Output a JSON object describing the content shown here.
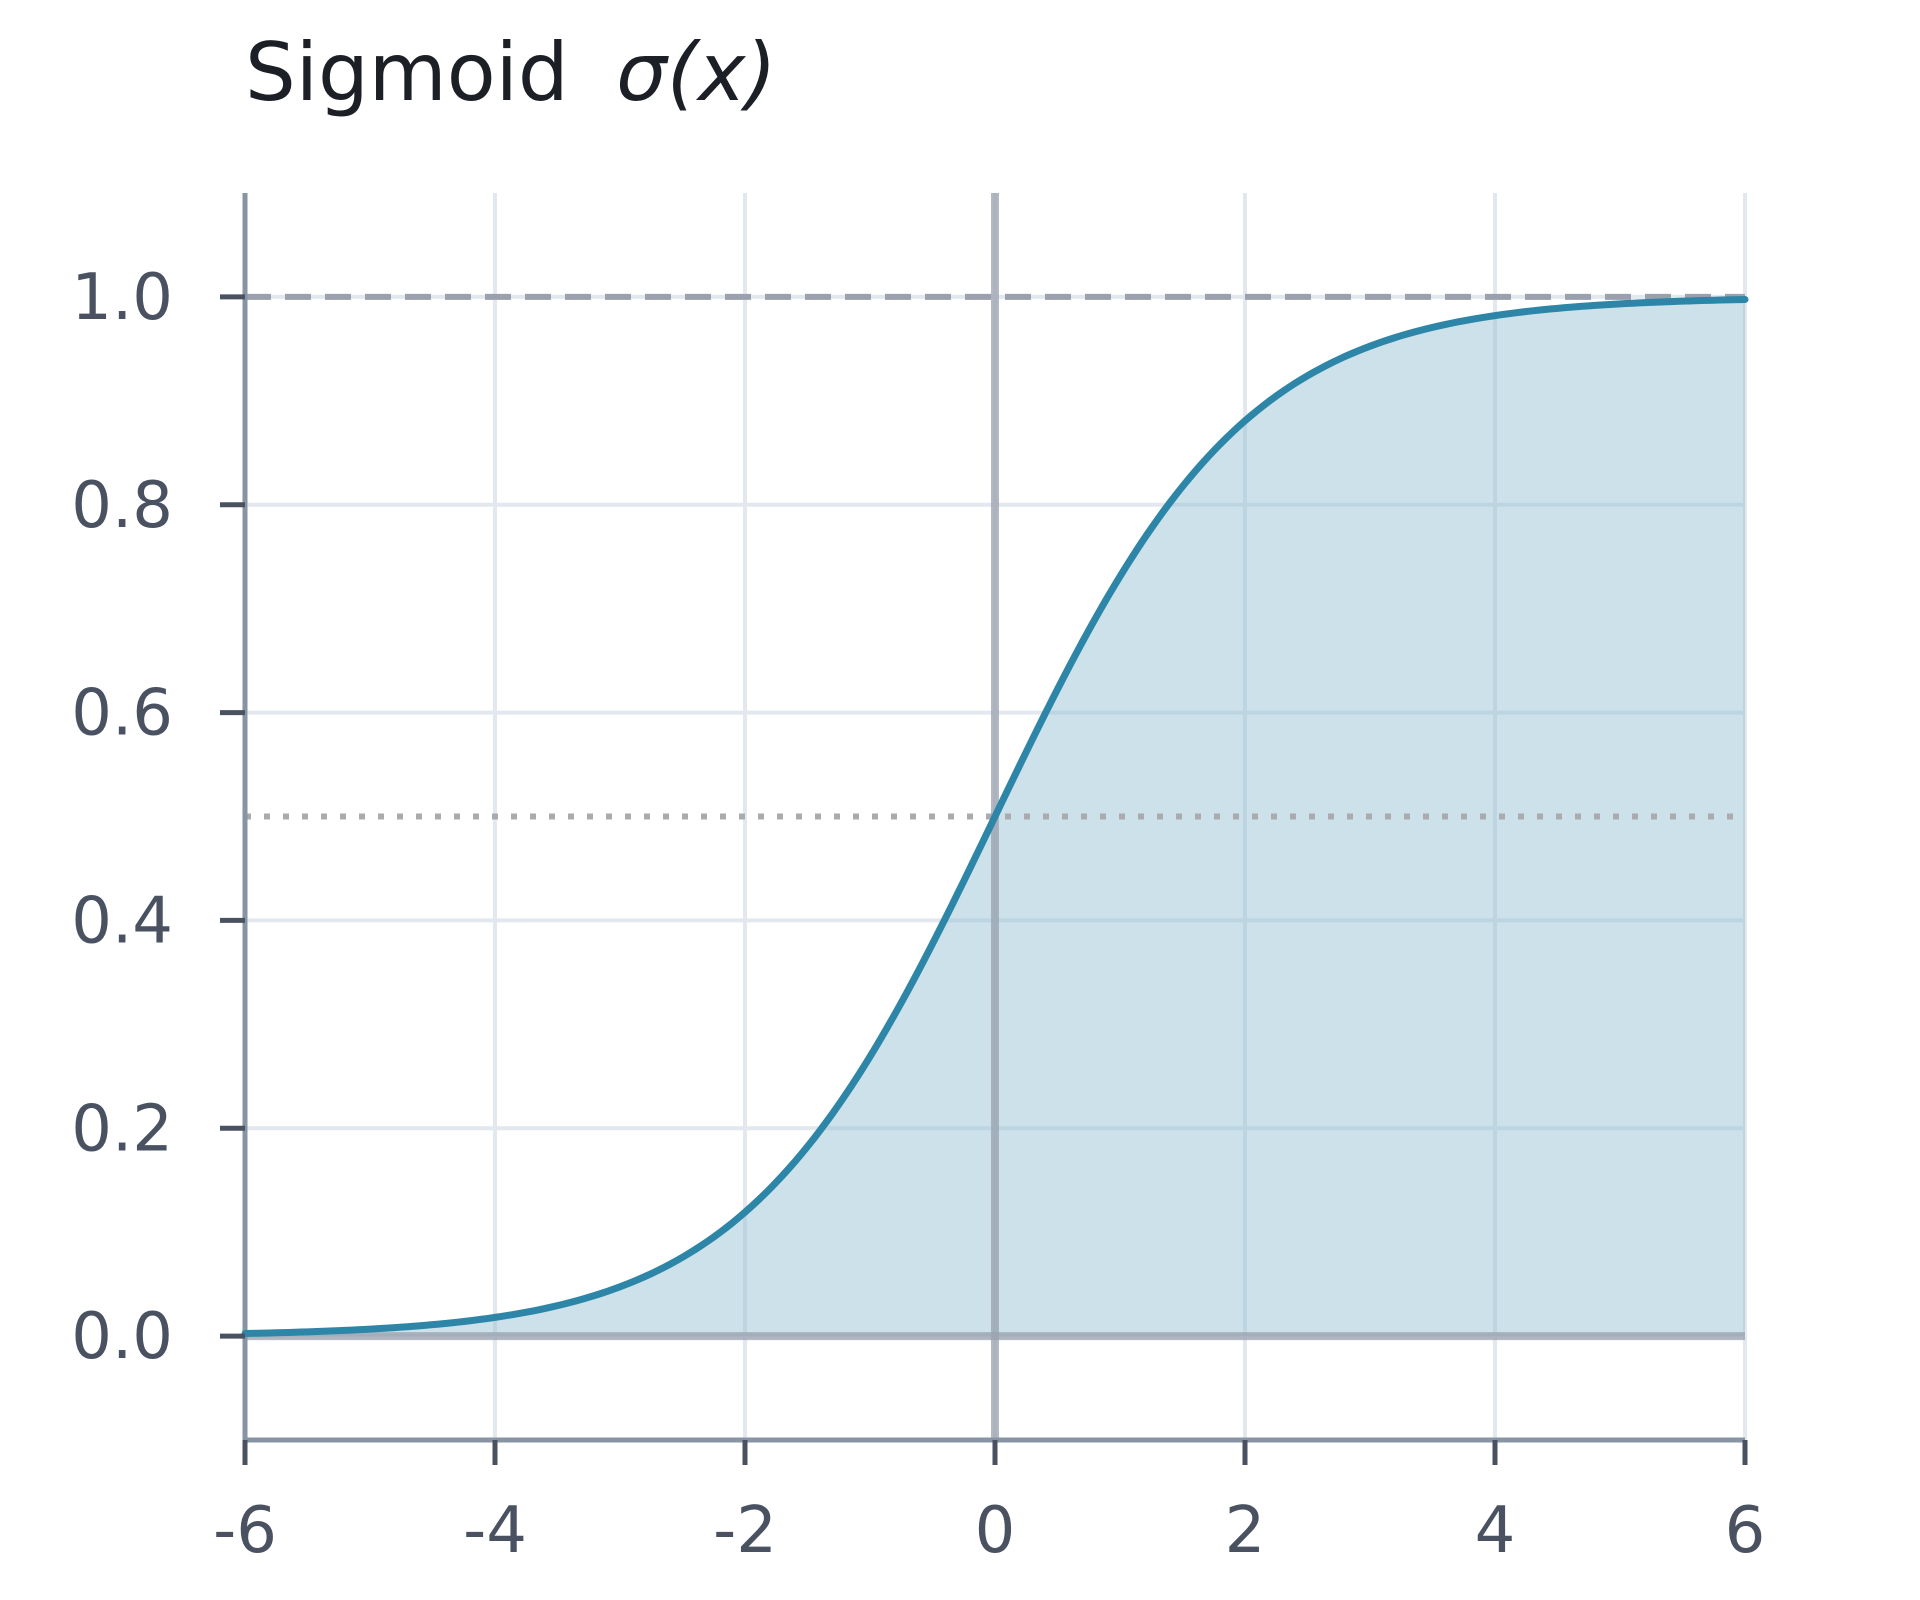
{
  "chart_data": {
    "type": "area",
    "title": "Sigmoid",
    "title_symbol": "σ(x)",
    "function": "sigmoid",
    "xlabel": "",
    "ylabel": "",
    "xlim": [
      -6,
      6
    ],
    "ylim": [
      -0.1,
      1.1
    ],
    "x_ticks": [
      -6,
      -4,
      -2,
      0,
      2,
      4,
      6
    ],
    "x_tick_labels": [
      "-6",
      "-4",
      "-2",
      "0",
      "2",
      "4",
      "6"
    ],
    "y_ticks": [
      0.0,
      0.2,
      0.4,
      0.6,
      0.8,
      1.0
    ],
    "y_tick_labels": [
      "0.0",
      "0.2",
      "0.4",
      "0.6",
      "0.8",
      "1.0"
    ],
    "grid": true,
    "reference_lines": [
      {
        "axis": "y",
        "value": 1.0,
        "style": "dashed"
      },
      {
        "axis": "y",
        "value": 0.5,
        "style": "dotted"
      },
      {
        "axis": "y",
        "value": 0.0,
        "style": "solid"
      },
      {
        "axis": "x",
        "value": 0,
        "style": "solid"
      }
    ],
    "series": [
      {
        "x": [
          -6,
          -5,
          -4,
          -3,
          -2,
          -1,
          0,
          1,
          2,
          3,
          4,
          5,
          6
        ],
        "y": [
          0.0025,
          0.0067,
          0.018,
          0.047,
          0.119,
          0.269,
          0.5,
          0.731,
          0.881,
          0.953,
          0.982,
          0.9933,
          0.9975
        ],
        "fill_to": 0
      }
    ],
    "colors": {
      "line": "#2d86a7",
      "fill": "#8ebcd0",
      "grid": "#e3e8ef",
      "axis": "#8893a3",
      "text": "#4a5262",
      "title": "#1c1f26"
    }
  }
}
